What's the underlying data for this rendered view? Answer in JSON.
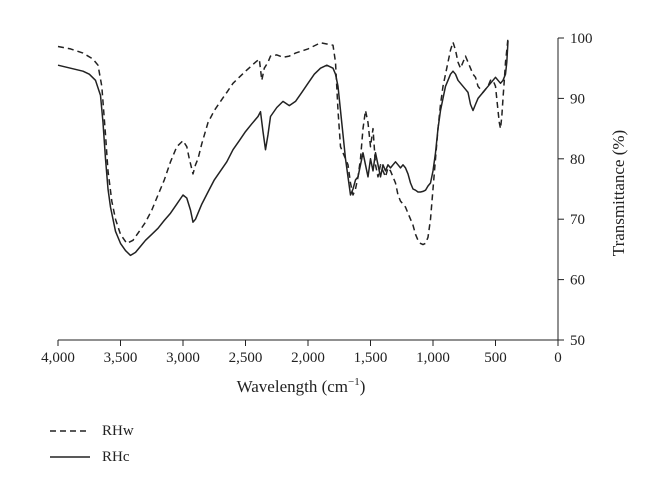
{
  "chart_data": {
    "type": "line",
    "xlabel": "Wavelength (cm",
    "xlabel_sup": "−1",
    "xlabel_end": ")",
    "ylabel": "Transmittance (%)",
    "xlim": [
      4000,
      0
    ],
    "ylim": [
      50,
      100
    ],
    "x_ticks": [
      4000,
      3500,
      3000,
      2500,
      2000,
      1500,
      1000,
      500,
      0
    ],
    "x_tick_labels": [
      "4,000",
      "3,500",
      "3,000",
      "2,500",
      "2,000",
      "1,500",
      "1,000",
      "500",
      "0"
    ],
    "y_ticks": [
      50,
      60,
      70,
      80,
      90,
      100
    ],
    "y_tick_labels": [
      "50",
      "60",
      "70",
      "80",
      "90",
      "100"
    ],
    "axis_position": "y-axis on right",
    "grid": false,
    "legend_position": "bottom-left",
    "series": [
      {
        "name": "RHw",
        "style": "dashed",
        "color": "#222222",
        "points": [
          [
            4000,
            98.6
          ],
          [
            3900,
            98.2
          ],
          [
            3800,
            97.5
          ],
          [
            3720,
            96.5
          ],
          [
            3680,
            95.5
          ],
          [
            3650,
            92
          ],
          [
            3620,
            84
          ],
          [
            3600,
            78
          ],
          [
            3570,
            73
          ],
          [
            3540,
            70
          ],
          [
            3500,
            67.5
          ],
          [
            3450,
            66
          ],
          [
            3400,
            66.5
          ],
          [
            3350,
            68
          ],
          [
            3300,
            69.5
          ],
          [
            3250,
            71.5
          ],
          [
            3200,
            74
          ],
          [
            3150,
            76.5
          ],
          [
            3100,
            79.5
          ],
          [
            3050,
            82
          ],
          [
            3000,
            83
          ],
          [
            2970,
            82
          ],
          [
            2950,
            80
          ],
          [
            2920,
            77.5
          ],
          [
            2900,
            79
          ],
          [
            2880,
            80
          ],
          [
            2850,
            82.5
          ],
          [
            2800,
            86
          ],
          [
            2750,
            88
          ],
          [
            2700,
            89.5
          ],
          [
            2650,
            91
          ],
          [
            2600,
            92.5
          ],
          [
            2500,
            94.5
          ],
          [
            2420,
            96
          ],
          [
            2390,
            96.5
          ],
          [
            2370,
            93
          ],
          [
            2350,
            95
          ],
          [
            2320,
            96
          ],
          [
            2300,
            97
          ],
          [
            2250,
            97.2
          ],
          [
            2200,
            96.8
          ],
          [
            2150,
            97
          ],
          [
            2100,
            97.5
          ],
          [
            2000,
            98.2
          ],
          [
            1900,
            99.2
          ],
          [
            1850,
            99
          ],
          [
            1800,
            98.8
          ],
          [
            1780,
            96
          ],
          [
            1760,
            88
          ],
          [
            1740,
            82
          ],
          [
            1720,
            81
          ],
          [
            1700,
            80
          ],
          [
            1680,
            79
          ],
          [
            1660,
            76
          ],
          [
            1640,
            74
          ],
          [
            1620,
            75
          ],
          [
            1600,
            77
          ],
          [
            1580,
            80
          ],
          [
            1560,
            85
          ],
          [
            1540,
            88
          ],
          [
            1520,
            86
          ],
          [
            1500,
            82
          ],
          [
            1480,
            85
          ],
          [
            1460,
            79
          ],
          [
            1440,
            77
          ],
          [
            1420,
            79
          ],
          [
            1400,
            78
          ],
          [
            1380,
            77
          ],
          [
            1360,
            78.5
          ],
          [
            1340,
            78
          ],
          [
            1320,
            77
          ],
          [
            1300,
            76
          ],
          [
            1280,
            74
          ],
          [
            1260,
            73
          ],
          [
            1240,
            72.5
          ],
          [
            1220,
            72
          ],
          [
            1200,
            71
          ],
          [
            1180,
            70
          ],
          [
            1160,
            69
          ],
          [
            1140,
            67.5
          ],
          [
            1120,
            66.5
          ],
          [
            1100,
            66
          ],
          [
            1080,
            65.8
          ],
          [
            1060,
            66
          ],
          [
            1040,
            67
          ],
          [
            1020,
            70
          ],
          [
            1000,
            75
          ],
          [
            980,
            80
          ],
          [
            960,
            85
          ],
          [
            940,
            89
          ],
          [
            920,
            92
          ],
          [
            900,
            94
          ],
          [
            880,
            96
          ],
          [
            860,
            98
          ],
          [
            840,
            99.3
          ],
          [
            820,
            98
          ],
          [
            800,
            96
          ],
          [
            780,
            95
          ],
          [
            760,
            96
          ],
          [
            740,
            97
          ],
          [
            720,
            96
          ],
          [
            700,
            95
          ],
          [
            680,
            94
          ],
          [
            660,
            93.5
          ],
          [
            640,
            92
          ],
          [
            620,
            91.5
          ],
          [
            600,
            91
          ],
          [
            580,
            91.5
          ],
          [
            560,
            92
          ],
          [
            540,
            93
          ],
          [
            520,
            93
          ],
          [
            500,
            92
          ],
          [
            480,
            88
          ],
          [
            470,
            86
          ],
          [
            460,
            85
          ],
          [
            450,
            87
          ],
          [
            440,
            90
          ],
          [
            430,
            93
          ],
          [
            420,
            96
          ],
          [
            410,
            98
          ],
          [
            400,
            100
          ]
        ]
      },
      {
        "name": "RHc",
        "style": "solid",
        "color": "#222222",
        "points": [
          [
            4000,
            95.5
          ],
          [
            3900,
            95
          ],
          [
            3800,
            94.5
          ],
          [
            3750,
            94
          ],
          [
            3700,
            93
          ],
          [
            3660,
            90.5
          ],
          [
            3640,
            86
          ],
          [
            3620,
            80
          ],
          [
            3600,
            75
          ],
          [
            3580,
            72
          ],
          [
            3560,
            70
          ],
          [
            3540,
            68
          ],
          [
            3500,
            66
          ],
          [
            3460,
            64.8
          ],
          [
            3420,
            64
          ],
          [
            3380,
            64.5
          ],
          [
            3340,
            65.5
          ],
          [
            3300,
            66.5
          ],
          [
            3250,
            67.5
          ],
          [
            3200,
            68.5
          ],
          [
            3150,
            69.8
          ],
          [
            3100,
            71
          ],
          [
            3050,
            72.5
          ],
          [
            3000,
            74
          ],
          [
            2970,
            73.5
          ],
          [
            2940,
            71.5
          ],
          [
            2920,
            69.5
          ],
          [
            2900,
            70
          ],
          [
            2880,
            71
          ],
          [
            2850,
            72.5
          ],
          [
            2800,
            74.5
          ],
          [
            2750,
            76.5
          ],
          [
            2700,
            78
          ],
          [
            2650,
            79.5
          ],
          [
            2600,
            81.5
          ],
          [
            2550,
            83
          ],
          [
            2500,
            84.5
          ],
          [
            2450,
            85.8
          ],
          [
            2400,
            87
          ],
          [
            2380,
            87.8
          ],
          [
            2360,
            84.5
          ],
          [
            2340,
            81.5
          ],
          [
            2320,
            84
          ],
          [
            2300,
            87
          ],
          [
            2250,
            88.5
          ],
          [
            2200,
            89.5
          ],
          [
            2150,
            88.8
          ],
          [
            2100,
            89.5
          ],
          [
            2050,
            91
          ],
          [
            2000,
            92.5
          ],
          [
            1950,
            94
          ],
          [
            1900,
            95
          ],
          [
            1850,
            95.5
          ],
          [
            1800,
            95
          ],
          [
            1780,
            94
          ],
          [
            1760,
            92
          ],
          [
            1740,
            88
          ],
          [
            1720,
            84
          ],
          [
            1700,
            80
          ],
          [
            1680,
            77
          ],
          [
            1660,
            74
          ],
          [
            1640,
            75
          ],
          [
            1620,
            76.5
          ],
          [
            1600,
            77
          ],
          [
            1580,
            79
          ],
          [
            1560,
            81
          ],
          [
            1540,
            79
          ],
          [
            1520,
            77
          ],
          [
            1500,
            80
          ],
          [
            1480,
            78
          ],
          [
            1460,
            81
          ],
          [
            1440,
            79
          ],
          [
            1420,
            77
          ],
          [
            1400,
            79
          ],
          [
            1380,
            78
          ],
          [
            1360,
            79
          ],
          [
            1340,
            78.5
          ],
          [
            1320,
            79
          ],
          [
            1300,
            79.5
          ],
          [
            1280,
            79
          ],
          [
            1260,
            78.5
          ],
          [
            1240,
            79
          ],
          [
            1220,
            78.5
          ],
          [
            1200,
            77.5
          ],
          [
            1180,
            76
          ],
          [
            1160,
            75
          ],
          [
            1140,
            74.8
          ],
          [
            1120,
            74.5
          ],
          [
            1100,
            74.5
          ],
          [
            1080,
            74.6
          ],
          [
            1060,
            74.8
          ],
          [
            1040,
            75.5
          ],
          [
            1020,
            76
          ],
          [
            1000,
            78
          ],
          [
            980,
            81
          ],
          [
            960,
            85
          ],
          [
            940,
            88
          ],
          [
            920,
            90
          ],
          [
            900,
            92
          ],
          [
            880,
            93
          ],
          [
            860,
            94
          ],
          [
            840,
            94.5
          ],
          [
            820,
            94
          ],
          [
            800,
            93
          ],
          [
            780,
            92.5
          ],
          [
            760,
            92
          ],
          [
            740,
            91.5
          ],
          [
            720,
            91
          ],
          [
            700,
            89
          ],
          [
            680,
            88
          ],
          [
            660,
            89
          ],
          [
            640,
            90
          ],
          [
            620,
            90.5
          ],
          [
            600,
            91
          ],
          [
            580,
            91.5
          ],
          [
            560,
            92
          ],
          [
            540,
            92.5
          ],
          [
            520,
            93
          ],
          [
            500,
            93.5
          ],
          [
            480,
            93
          ],
          [
            460,
            92.5
          ],
          [
            440,
            93
          ],
          [
            420,
            94
          ],
          [
            410,
            96
          ],
          [
            400,
            99.5
          ]
        ]
      }
    ]
  }
}
